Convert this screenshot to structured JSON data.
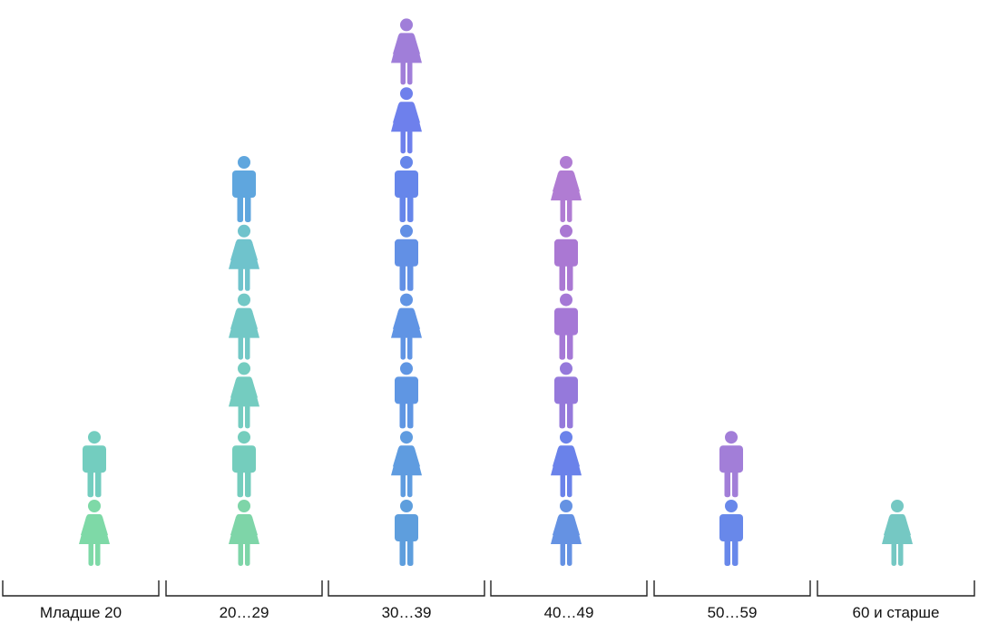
{
  "chart_data": {
    "type": "pictogram",
    "unit": "person",
    "categories": [
      "Младше 20",
      "20…29",
      "30…39",
      "40…49",
      "50…59",
      "60 и старше"
    ],
    "values": [
      2,
      6,
      8,
      6,
      2,
      1
    ],
    "columns": [
      {
        "category": "Младше 20",
        "icons": [
          {
            "gender": "female",
            "color": "#7ED9A7"
          },
          {
            "gender": "male",
            "color": "#73CDBF"
          }
        ]
      },
      {
        "category": "20…29",
        "icons": [
          {
            "gender": "female",
            "color": "#7ED5A8"
          },
          {
            "gender": "male",
            "color": "#74CDBD"
          },
          {
            "gender": "female",
            "color": "#74CCC0"
          },
          {
            "gender": "female",
            "color": "#72C8C6"
          },
          {
            "gender": "female",
            "color": "#6FC3CC"
          },
          {
            "gender": "male",
            "color": "#5FA6DE"
          }
        ]
      },
      {
        "category": "30…39",
        "icons": [
          {
            "gender": "male",
            "color": "#5E9EDD"
          },
          {
            "gender": "female",
            "color": "#5F9CE0"
          },
          {
            "gender": "male",
            "color": "#5F96E3"
          },
          {
            "gender": "female",
            "color": "#6094E4"
          },
          {
            "gender": "male",
            "color": "#6290E5"
          },
          {
            "gender": "male",
            "color": "#6686EA"
          },
          {
            "gender": "female",
            "color": "#6E80EC"
          },
          {
            "gender": "female",
            "color": "#A07ED9"
          }
        ]
      },
      {
        "category": "40…49",
        "icons": [
          {
            "gender": "female",
            "color": "#6592E3"
          },
          {
            "gender": "female",
            "color": "#6A82EA"
          },
          {
            "gender": "male",
            "color": "#9579DB"
          },
          {
            "gender": "male",
            "color": "#A578D6"
          },
          {
            "gender": "male",
            "color": "#AA78D3"
          },
          {
            "gender": "female",
            "color": "#B07CD3"
          }
        ]
      },
      {
        "category": "50…59",
        "icons": [
          {
            "gender": "male",
            "color": "#6888EA"
          },
          {
            "gender": "male",
            "color": "#A27ED8"
          }
        ]
      },
      {
        "category": "60 и старше",
        "icons": [
          {
            "gender": "female",
            "color": "#75C8C3"
          }
        ]
      }
    ]
  }
}
